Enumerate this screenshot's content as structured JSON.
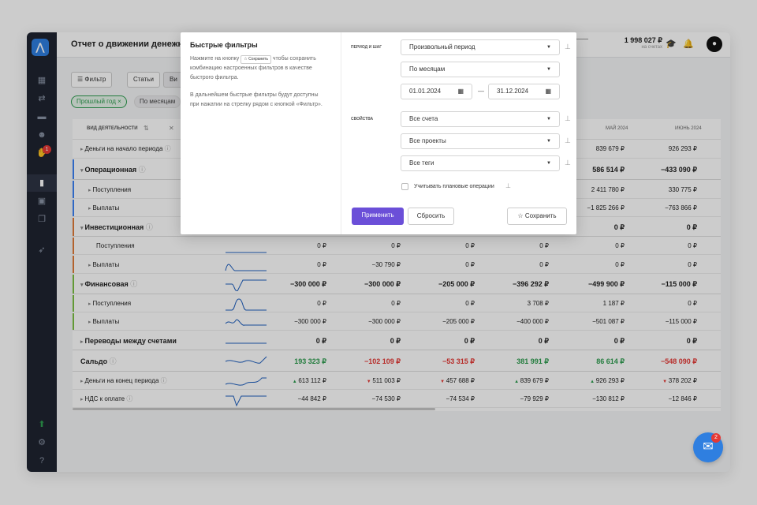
{
  "page": {
    "title": "Отчет о движении денежн",
    "balance": "1 998 027 ₽",
    "balance_sub": "на счетах"
  },
  "rail": {
    "logo": "⋀",
    "badge": "1"
  },
  "toolbar": {
    "filter": "Фильтр",
    "articles": "Статьи",
    "view_partial": "Ви",
    "chip_year": "Прошлый год",
    "chip_month": "По месяцам"
  },
  "table": {
    "activity_header": "ВИД ДЕЯТЕЛЬНОСТИ",
    "month_headers": [
      "МАЙ 2024",
      "ИЮНЬ 2024"
    ],
    "rows": [
      {
        "label": "Деньги на начало периода",
        "vals": [
          "",
          "",
          "",
          "",
          "839 679 ₽",
          "926 293 ₽"
        ]
      },
      {
        "label": "Операционная",
        "vals": [
          "",
          "",
          "",
          "",
          "586 514 ₽",
          "−433 090 ₽"
        ]
      },
      {
        "label": "Поступления",
        "vals": [
          "",
          "",
          "",
          "",
          "2 411 780 ₽",
          "330 775 ₽"
        ]
      },
      {
        "label": "Выплаты",
        "vals": [
          "",
          "",
          "",
          "",
          "−1 825 266 ₽",
          "−763 866 ₽"
        ]
      },
      {
        "label": "Инвестиционная",
        "vals": [
          "",
          "",
          "",
          "",
          "0 ₽",
          "0 ₽"
        ]
      },
      {
        "label": "Поступления",
        "vals": [
          "0 ₽",
          "0 ₽",
          "0 ₽",
          "0 ₽",
          "0 ₽",
          "0 ₽"
        ]
      },
      {
        "label": "Выплаты",
        "vals": [
          "0 ₽",
          "−30 790 ₽",
          "0 ₽",
          "0 ₽",
          "0 ₽",
          "0 ₽"
        ]
      },
      {
        "label": "Финансовая",
        "vals": [
          "−300 000 ₽",
          "−300 000 ₽",
          "−205 000 ₽",
          "−396 292 ₽",
          "−499 900 ₽",
          "−115 000 ₽"
        ]
      },
      {
        "label": "Поступления",
        "vals": [
          "0 ₽",
          "0 ₽",
          "0 ₽",
          "3 708 ₽",
          "1 187 ₽",
          "0 ₽"
        ]
      },
      {
        "label": "Выплаты",
        "vals": [
          "−300 000 ₽",
          "−300 000 ₽",
          "−205 000 ₽",
          "−400 000 ₽",
          "−501 087 ₽",
          "−115 000 ₽"
        ]
      },
      {
        "label": "Переводы между счетами",
        "vals": [
          "0 ₽",
          "0 ₽",
          "0 ₽",
          "0 ₽",
          "0 ₽",
          "0 ₽"
        ]
      },
      {
        "label": "Сальдо",
        "vals": [
          "193 323 ₽",
          "−102 109 ₽",
          "−53 315 ₽",
          "381 991 ₽",
          "86 614 ₽",
          "−548 090 ₽"
        ]
      },
      {
        "label": "Деньги на конец периода",
        "vals": [
          "613 112 ₽",
          "511 003 ₽",
          "457 688 ₽",
          "839 679 ₽",
          "926 293 ₽",
          "378 202 ₽"
        ]
      },
      {
        "label": "НДС к оплате",
        "vals": [
          "−44 842 ₽",
          "−74 530 ₽",
          "−74 534 ₽",
          "−79 929 ₽",
          "−130 812 ₽",
          "−12 846 ₽"
        ]
      }
    ]
  },
  "modal": {
    "title": "Быстрые фильтры",
    "text1a": "Нажмите на кнопку",
    "save_mini": "☆ Сохранить",
    "text1b": "чтобы сохранить комбинацию настроенных фильтров в качестве быстрого фильтра.",
    "text2": "В дальнейшем быстрые фильтры будут доступны при нажатии на стрелку рядом с кнопкой «Фильтр».",
    "label_period": "ПЕРИОД И ШАГ",
    "label_props": "СВОЙСТВА",
    "period": "Произвольный период",
    "step": "По месяцам",
    "date_from": "01.01.2024",
    "date_to": "31.12.2024",
    "dash": "—",
    "accounts": "Все счета",
    "projects": "Все проекты",
    "tags": "Все теги",
    "planned": "Учитывать плановые операции",
    "apply": "Применить",
    "reset": "Сбросить",
    "save": "Сохранить"
  },
  "chat": {
    "badge": "2"
  },
  "colors": {
    "accent": "#6b4fd8",
    "positive": "#2e9d4f",
    "negative": "#e53935"
  }
}
